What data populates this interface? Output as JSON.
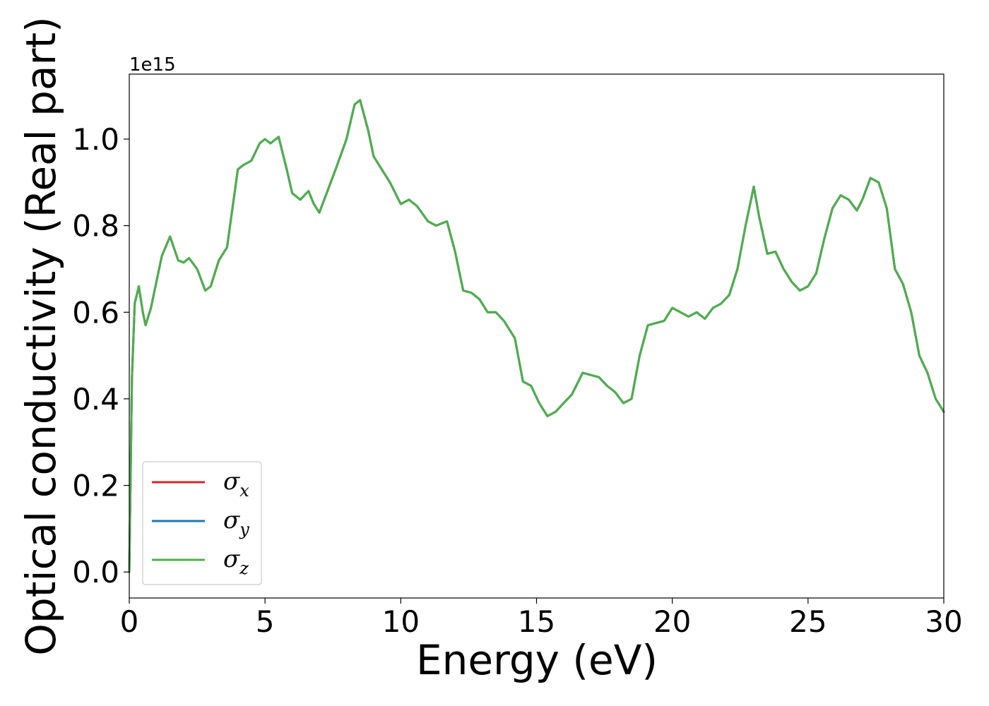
{
  "chart_data": {
    "type": "line",
    "xlabel": "Energy (eV)",
    "ylabel": "Optical conductivity (Real part)",
    "y_offset_label": "1e15",
    "xlim": [
      0,
      30
    ],
    "ylim": [
      -0.06,
      1.15
    ],
    "xticks": [
      0,
      5,
      10,
      15,
      20,
      25,
      30
    ],
    "xtick_labels": [
      "0",
      "5",
      "10",
      "15",
      "20",
      "25",
      "30"
    ],
    "yticks": [
      0.0,
      0.2,
      0.4,
      0.6,
      0.8,
      1.0
    ],
    "ytick_labels": [
      "0.0",
      "0.2",
      "0.4",
      "0.6",
      "0.8",
      "1.0"
    ],
    "grid": false,
    "legend_position": "lower-left",
    "x": [
      0,
      0.1,
      0.2,
      0.35,
      0.5,
      0.6,
      0.8,
      1.0,
      1.2,
      1.5,
      1.8,
      2.0,
      2.2,
      2.5,
      2.8,
      3.0,
      3.3,
      3.6,
      4.0,
      4.2,
      4.5,
      4.8,
      5.0,
      5.2,
      5.5,
      5.8,
      6.0,
      6.3,
      6.6,
      6.8,
      7.0,
      7.3,
      7.6,
      8.0,
      8.3,
      8.5,
      8.8,
      9.0,
      9.3,
      9.6,
      10.0,
      10.3,
      10.6,
      11.0,
      11.3,
      11.7,
      12.0,
      12.3,
      12.6,
      12.9,
      13.2,
      13.5,
      13.8,
      14.2,
      14.5,
      14.8,
      15.1,
      15.4,
      15.7,
      16.0,
      16.3,
      16.7,
      17.0,
      17.3,
      17.6,
      17.9,
      18.2,
      18.5,
      18.8,
      19.1,
      19.4,
      19.7,
      20.0,
      20.3,
      20.6,
      20.9,
      21.2,
      21.5,
      21.8,
      22.1,
      22.4,
      22.7,
      23.0,
      23.2,
      23.5,
      23.8,
      24.1,
      24.4,
      24.7,
      25.0,
      25.3,
      25.6,
      25.9,
      26.2,
      26.5,
      26.8,
      27.0,
      27.3,
      27.6,
      27.9,
      28.2,
      28.5,
      28.8,
      29.1,
      29.4,
      29.7,
      30.0
    ],
    "series": [
      {
        "name": "σx",
        "color": "#d62728",
        "values": [
          0.0,
          0.45,
          0.62,
          0.66,
          0.6,
          0.57,
          0.61,
          0.67,
          0.73,
          0.775,
          0.72,
          0.715,
          0.725,
          0.7,
          0.65,
          0.66,
          0.72,
          0.75,
          0.93,
          0.94,
          0.95,
          0.99,
          1.0,
          0.99,
          1.005,
          0.93,
          0.875,
          0.86,
          0.88,
          0.85,
          0.83,
          0.88,
          0.93,
          1.0,
          1.08,
          1.09,
          1.02,
          0.96,
          0.93,
          0.9,
          0.85,
          0.86,
          0.845,
          0.81,
          0.8,
          0.81,
          0.74,
          0.65,
          0.645,
          0.63,
          0.6,
          0.6,
          0.58,
          0.54,
          0.44,
          0.43,
          0.39,
          0.36,
          0.37,
          0.39,
          0.41,
          0.46,
          0.455,
          0.45,
          0.43,
          0.415,
          0.39,
          0.4,
          0.5,
          0.57,
          0.575,
          0.58,
          0.61,
          0.6,
          0.59,
          0.6,
          0.585,
          0.61,
          0.62,
          0.64,
          0.7,
          0.8,
          0.89,
          0.82,
          0.735,
          0.74,
          0.7,
          0.67,
          0.65,
          0.66,
          0.69,
          0.77,
          0.84,
          0.87,
          0.86,
          0.835,
          0.86,
          0.91,
          0.9,
          0.84,
          0.7,
          0.665,
          0.6,
          0.5,
          0.46,
          0.4,
          0.37
        ]
      },
      {
        "name": "σy",
        "color": "#1f77b4",
        "values": [
          0.0,
          0.45,
          0.62,
          0.66,
          0.6,
          0.57,
          0.61,
          0.67,
          0.73,
          0.775,
          0.72,
          0.715,
          0.725,
          0.7,
          0.65,
          0.66,
          0.72,
          0.75,
          0.93,
          0.94,
          0.95,
          0.99,
          1.0,
          0.99,
          1.005,
          0.93,
          0.875,
          0.86,
          0.88,
          0.85,
          0.83,
          0.88,
          0.93,
          1.0,
          1.08,
          1.09,
          1.02,
          0.96,
          0.93,
          0.9,
          0.85,
          0.86,
          0.845,
          0.81,
          0.8,
          0.81,
          0.74,
          0.65,
          0.645,
          0.63,
          0.6,
          0.6,
          0.58,
          0.54,
          0.44,
          0.43,
          0.39,
          0.36,
          0.37,
          0.39,
          0.41,
          0.46,
          0.455,
          0.45,
          0.43,
          0.415,
          0.39,
          0.4,
          0.5,
          0.57,
          0.575,
          0.58,
          0.61,
          0.6,
          0.59,
          0.6,
          0.585,
          0.61,
          0.62,
          0.64,
          0.7,
          0.8,
          0.89,
          0.82,
          0.735,
          0.74,
          0.7,
          0.67,
          0.65,
          0.66,
          0.69,
          0.77,
          0.84,
          0.87,
          0.86,
          0.835,
          0.86,
          0.91,
          0.9,
          0.84,
          0.7,
          0.665,
          0.6,
          0.5,
          0.46,
          0.4,
          0.37
        ]
      },
      {
        "name": "σz",
        "color": "#4daf4a",
        "values": [
          0.0,
          0.45,
          0.62,
          0.66,
          0.6,
          0.57,
          0.61,
          0.67,
          0.73,
          0.775,
          0.72,
          0.715,
          0.725,
          0.7,
          0.65,
          0.66,
          0.72,
          0.75,
          0.93,
          0.94,
          0.95,
          0.99,
          1.0,
          0.99,
          1.005,
          0.93,
          0.875,
          0.86,
          0.88,
          0.85,
          0.83,
          0.88,
          0.93,
          1.0,
          1.08,
          1.09,
          1.02,
          0.96,
          0.93,
          0.9,
          0.85,
          0.86,
          0.845,
          0.81,
          0.8,
          0.81,
          0.74,
          0.65,
          0.645,
          0.63,
          0.6,
          0.6,
          0.58,
          0.54,
          0.44,
          0.43,
          0.39,
          0.36,
          0.37,
          0.39,
          0.41,
          0.46,
          0.455,
          0.45,
          0.43,
          0.415,
          0.39,
          0.4,
          0.5,
          0.57,
          0.575,
          0.58,
          0.61,
          0.6,
          0.59,
          0.6,
          0.585,
          0.61,
          0.62,
          0.64,
          0.7,
          0.8,
          0.89,
          0.82,
          0.735,
          0.74,
          0.7,
          0.67,
          0.65,
          0.66,
          0.69,
          0.77,
          0.84,
          0.87,
          0.86,
          0.835,
          0.86,
          0.91,
          0.9,
          0.84,
          0.7,
          0.665,
          0.6,
          0.5,
          0.46,
          0.4,
          0.37
        ]
      }
    ],
    "legend": [
      {
        "symbol": "σ",
        "subscript": "x",
        "color": "#d62728"
      },
      {
        "symbol": "σ",
        "subscript": "y",
        "color": "#1f77b4"
      },
      {
        "symbol": "σ",
        "subscript": "z",
        "color": "#4daf4a"
      }
    ]
  }
}
